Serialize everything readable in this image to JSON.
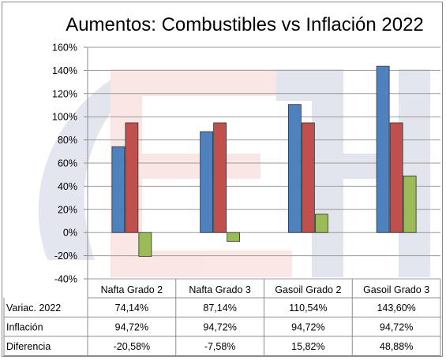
{
  "chart_data": {
    "type": "bar",
    "title": "Aumentos: Combustibles vs Inflación 2022",
    "categories": [
      "Nafta Grado 2",
      "Nafta Grado 3",
      "Gasoil Grado 2",
      "Gasoil Grado 3"
    ],
    "series": [
      {
        "name": "Variac. 2022",
        "color": "#4f81bd",
        "values": [
          74.14,
          87.14,
          110.54,
          143.6
        ],
        "labels": [
          "74,14%",
          "87,14%",
          "110,54%",
          "143,60%"
        ]
      },
      {
        "name": "Inflación",
        "color": "#c0504d",
        "values": [
          94.72,
          94.72,
          94.72,
          94.72
        ],
        "labels": [
          "94,72%",
          "94,72%",
          "94,72%",
          "94,72%"
        ]
      },
      {
        "name": "Diferencia",
        "color": "#9bbb59",
        "values": [
          -20.58,
          -7.58,
          15.82,
          48.88
        ],
        "labels": [
          "-20,58%",
          "-7,58%",
          "15,82%",
          "48,88%"
        ]
      }
    ],
    "ylim": [
      -40,
      160
    ],
    "yticks": [
      -40,
      -20,
      0,
      20,
      40,
      60,
      80,
      100,
      120,
      140,
      160
    ],
    "ytick_labels": [
      "-40%",
      "-20%",
      "0%",
      "20%",
      "40%",
      "60%",
      "80%",
      "100%",
      "120%",
      "140%",
      "160%"
    ],
    "grid": true,
    "legend": "data-table"
  }
}
